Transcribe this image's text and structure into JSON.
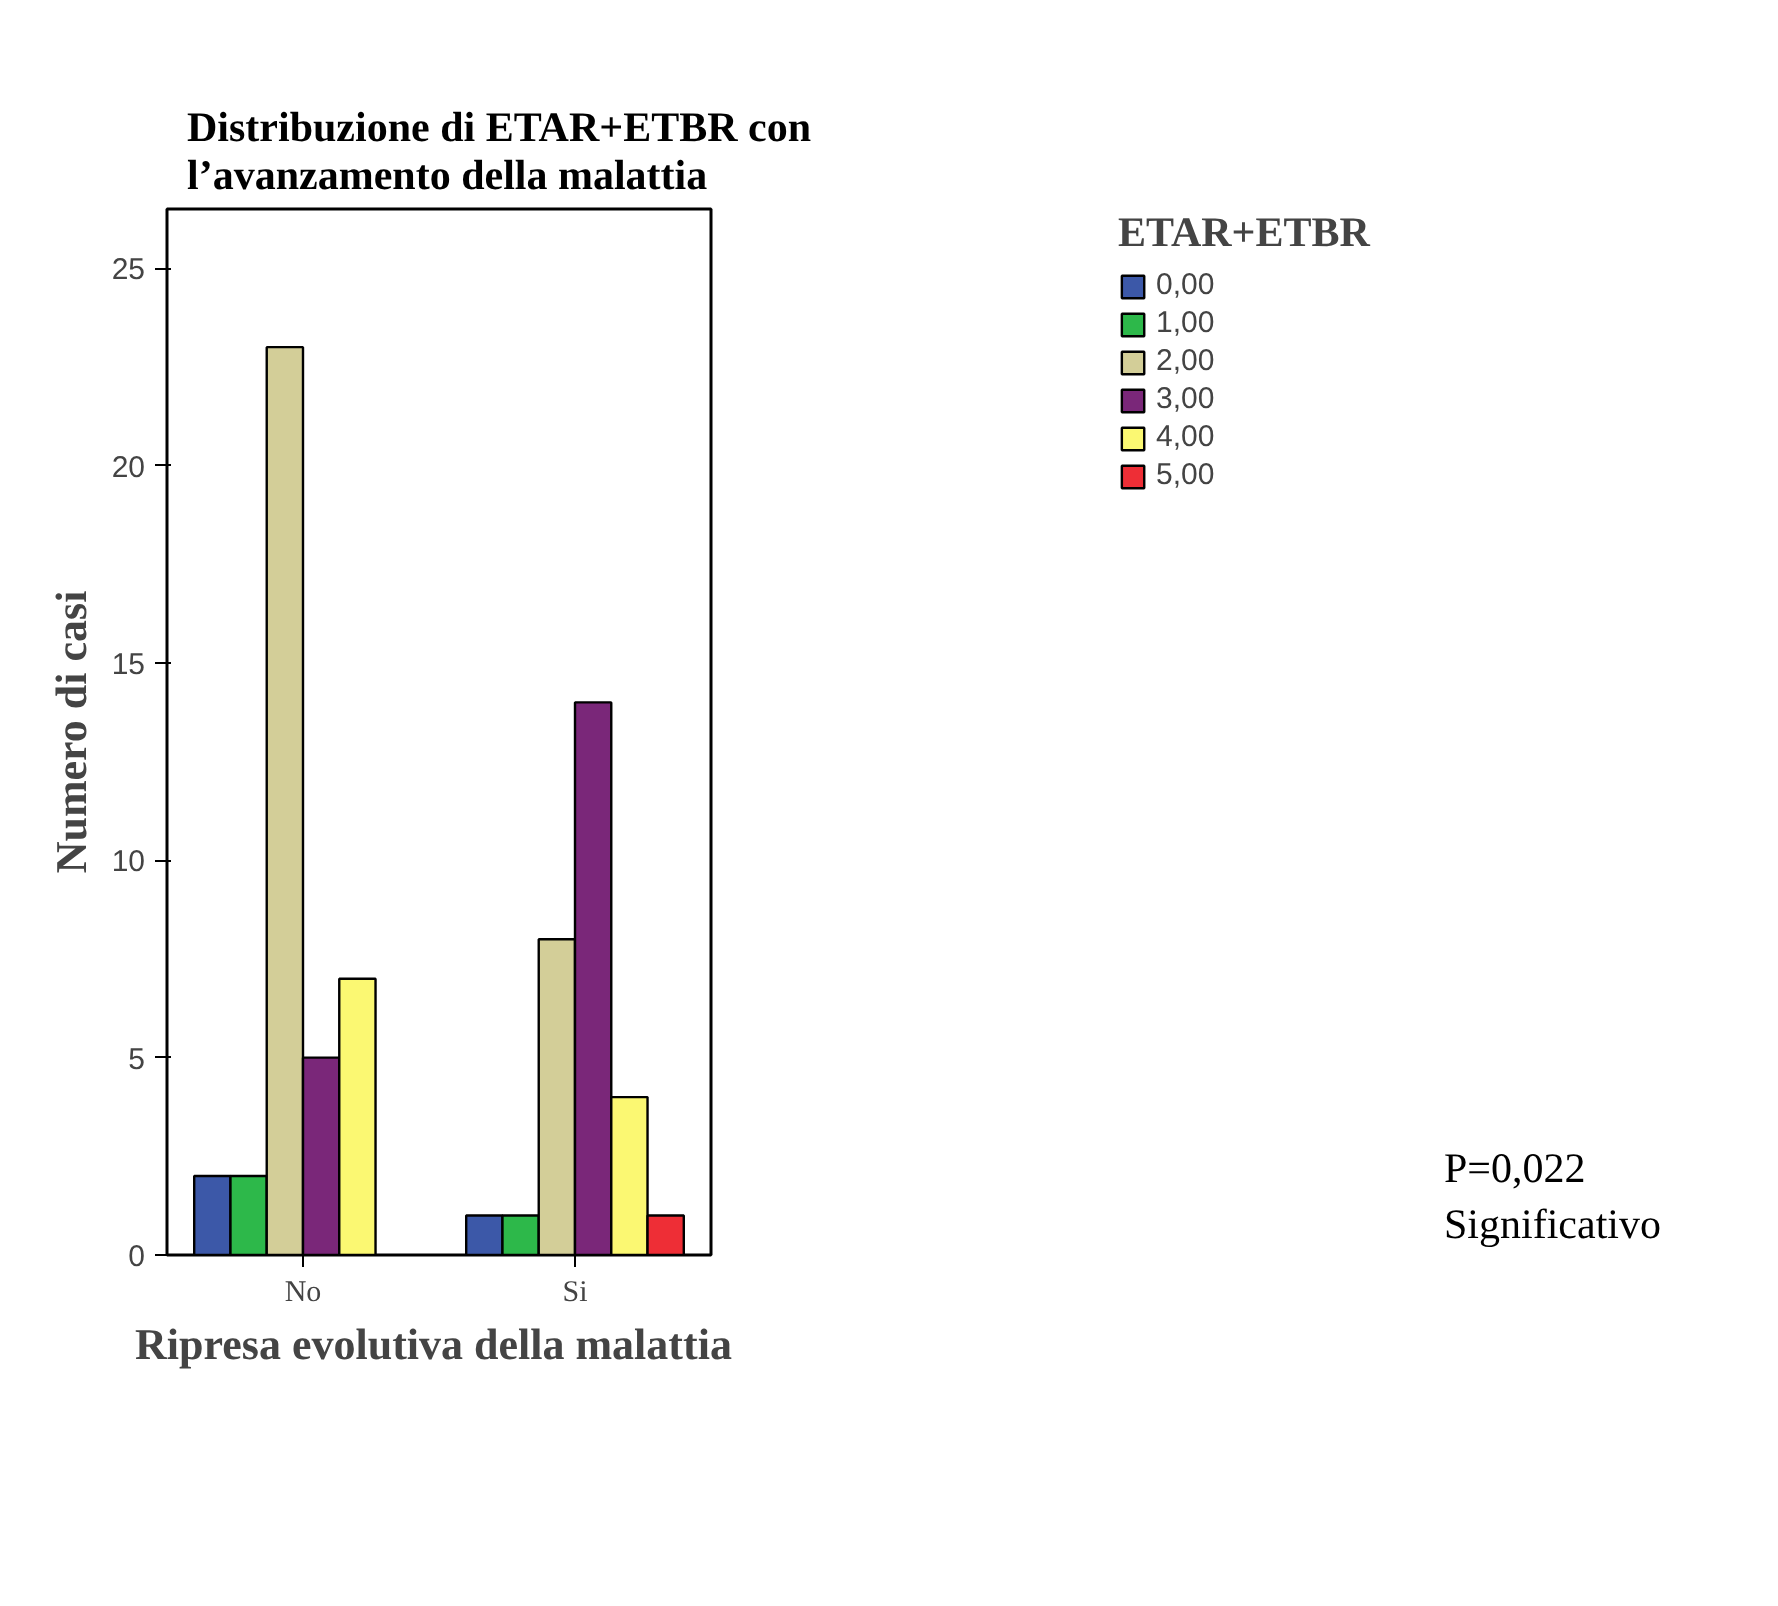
{
  "chart_data": {
    "type": "bar",
    "title": "Distribuzione di ETAR+ETBR con\nl’avanzamento della malattia",
    "xlabel": "Ripresa evolutiva  della malattia",
    "ylabel": "Numero di casi",
    "legend_title": "ETAR+ETBR",
    "categories": [
      "No",
      "Si"
    ],
    "series": [
      {
        "name": "0,00",
        "color": "#3c58a8",
        "values": [
          2,
          1
        ]
      },
      {
        "name": "1,00",
        "color": "#2db84a",
        "values": [
          2,
          1
        ]
      },
      {
        "name": "2,00",
        "color": "#d3ce98",
        "values": [
          23,
          8
        ]
      },
      {
        "name": "3,00",
        "color": "#7a2779",
        "values": [
          5,
          14
        ]
      },
      {
        "name": "4,00",
        "color": "#fbf872",
        "values": [
          7,
          4
        ]
      },
      {
        "name": "5,00",
        "color": "#ee2e36",
        "values": [
          null,
          1
        ]
      }
    ],
    "ylim": [
      0,
      26.5
    ],
    "yticks": [
      0,
      5,
      10,
      15,
      20,
      25
    ],
    "grid": false,
    "legend": "right",
    "annotations": [
      "P=0,022",
      "Significativo"
    ]
  }
}
